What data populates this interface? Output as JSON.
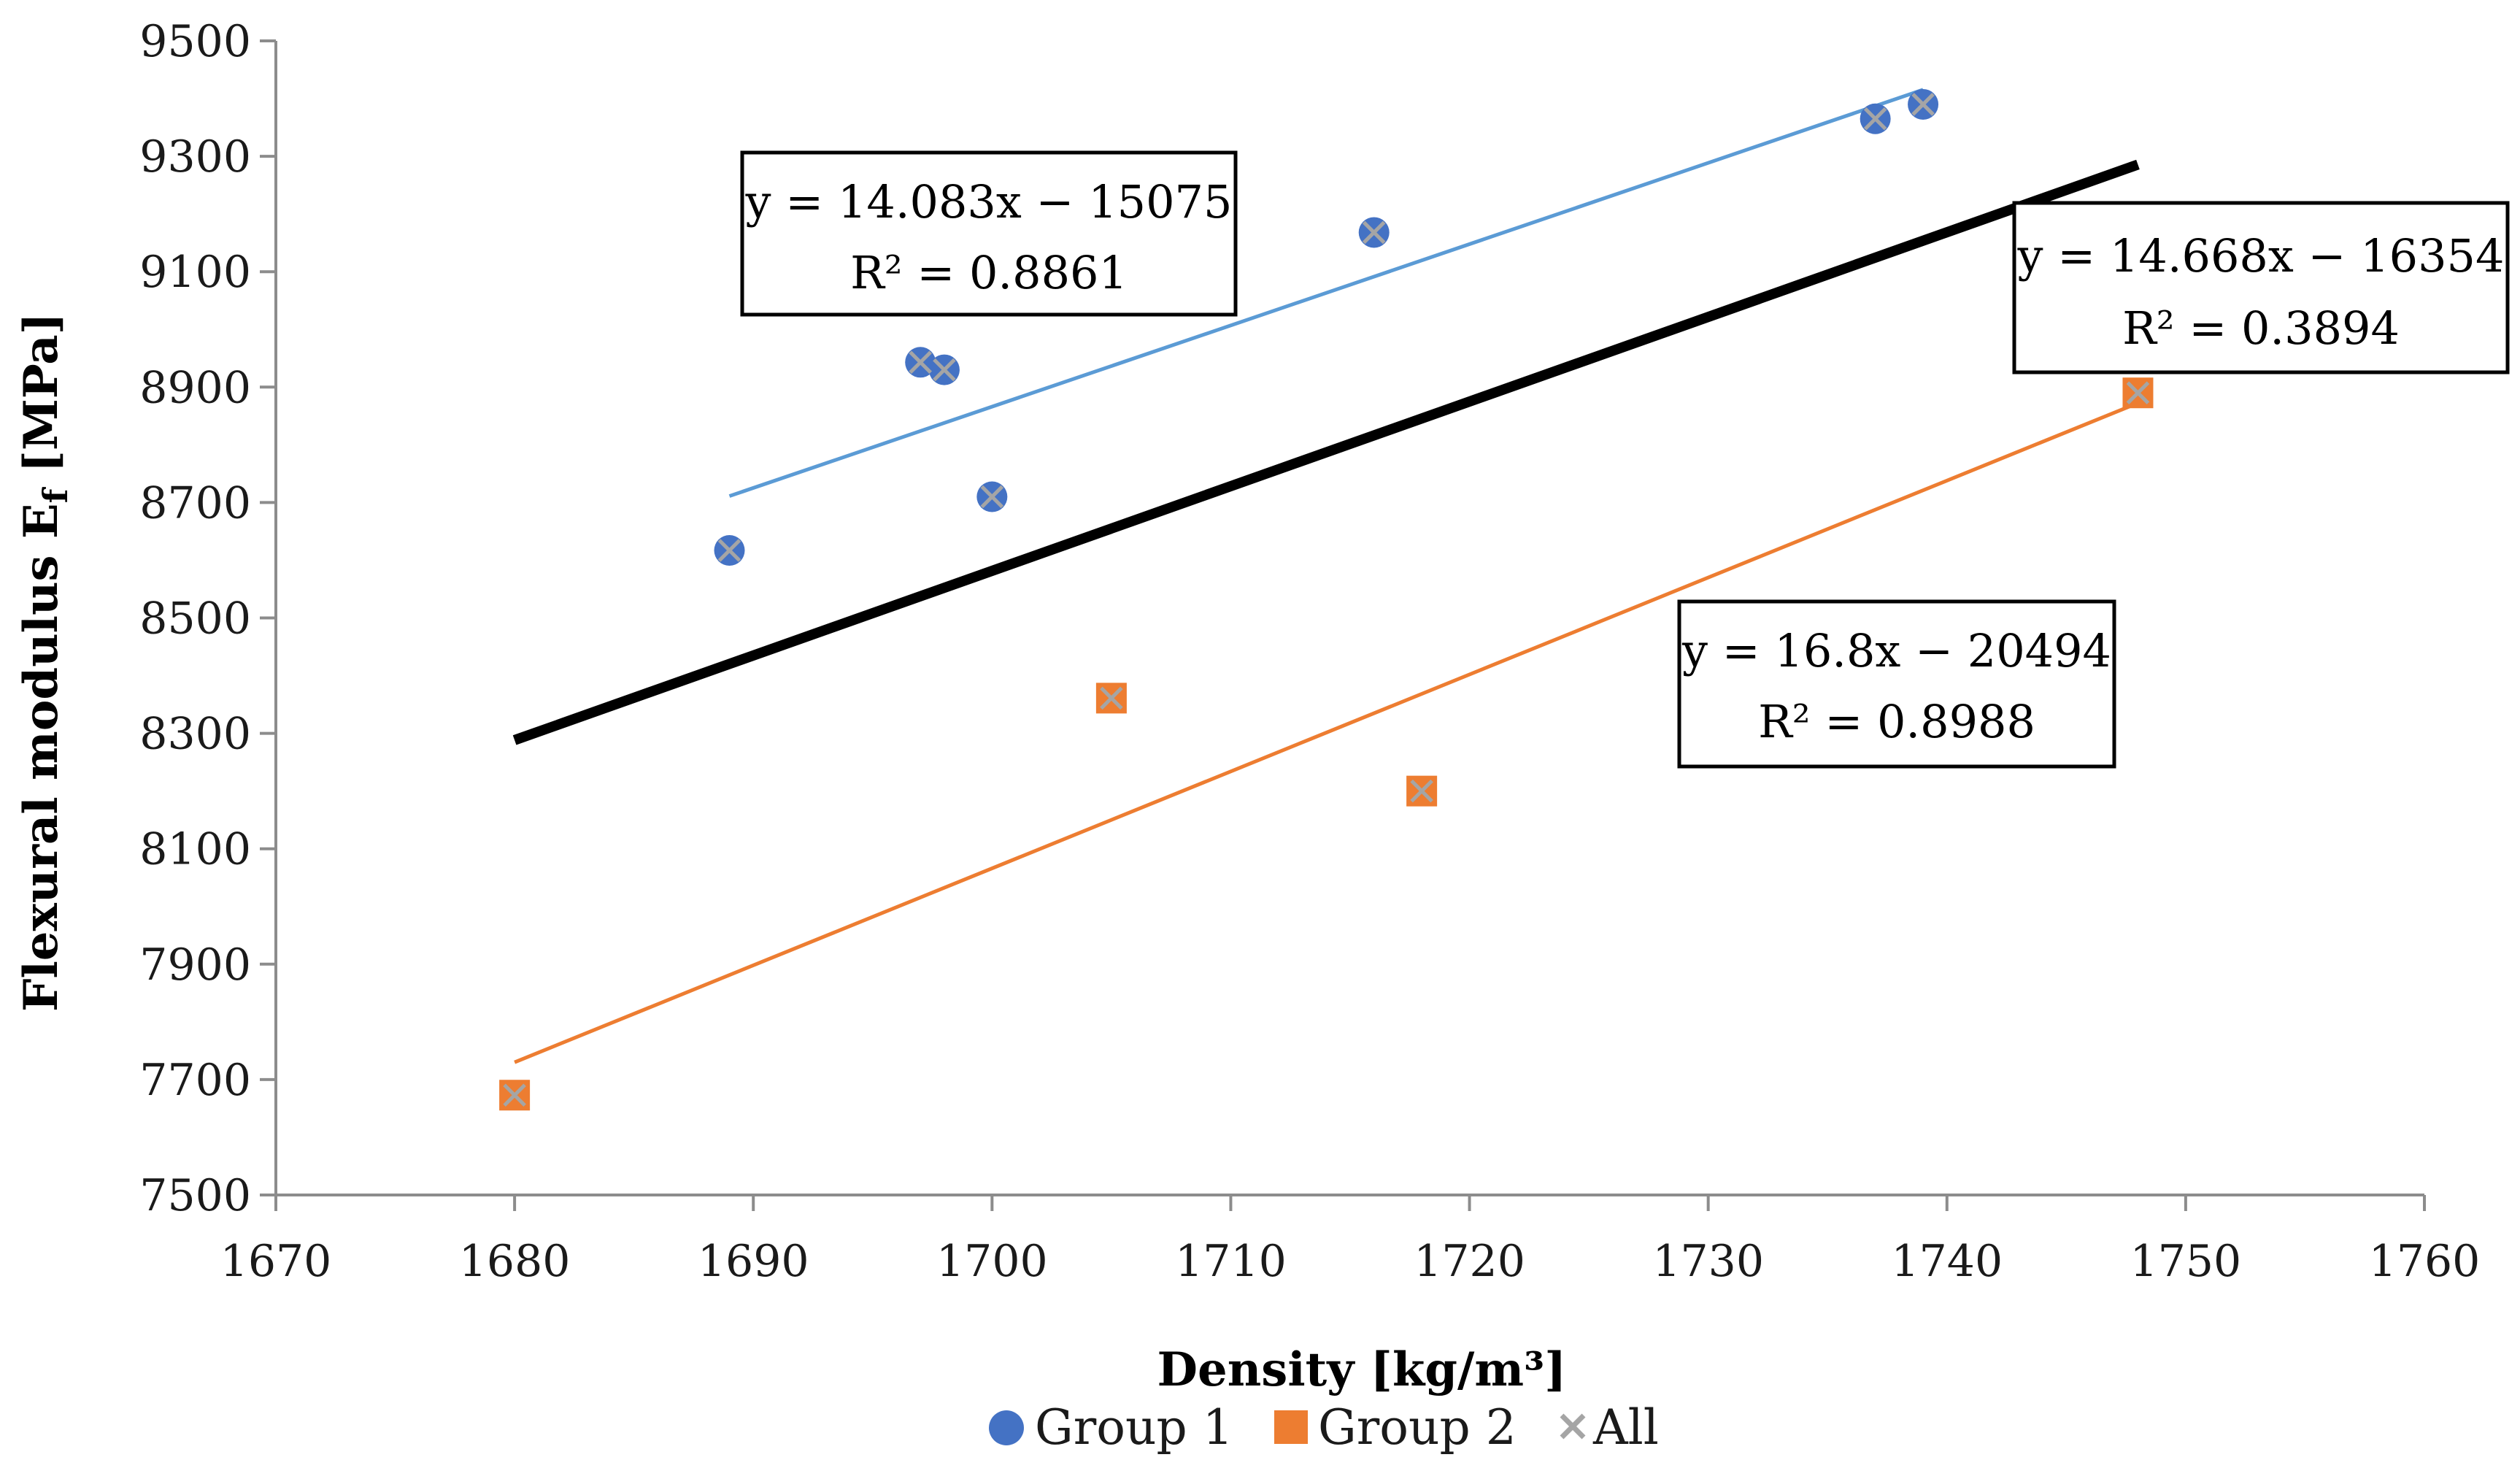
{
  "chart_data": {
    "type": "scatter",
    "title": "",
    "xlabel": "Density [kg/m³]",
    "ylabel": "Flexural modulus E",
    "ylabel_sub": "f",
    "ylabel_suffix": " [MPa]",
    "xlim": [
      1670,
      1760
    ],
    "ylim": [
      7500,
      9500
    ],
    "x_ticks": [
      1670,
      1680,
      1690,
      1700,
      1710,
      1720,
      1730,
      1740,
      1750,
      1760
    ],
    "y_ticks": [
      7500,
      7700,
      7900,
      8100,
      8300,
      8500,
      8700,
      8900,
      9100,
      9300,
      9500
    ],
    "grid": false,
    "legend_position": "bottom",
    "series": [
      {
        "name": "Group 1",
        "marker": "circle",
        "color": "#4472C4",
        "points": [
          [
            1689,
            8617
          ],
          [
            1697,
            8943
          ],
          [
            1698,
            8930
          ],
          [
            1700,
            8710
          ],
          [
            1716,
            9168
          ],
          [
            1737,
            9365
          ],
          [
            1739,
            9390
          ]
        ]
      },
      {
        "name": "Group 2",
        "marker": "square",
        "color": "#ED7D31",
        "points": [
          [
            1680,
            7673
          ],
          [
            1705,
            8361
          ],
          [
            1718,
            8200
          ],
          [
            1748,
            8890
          ]
        ]
      },
      {
        "name": "All",
        "marker": "x",
        "color": "#A5A5A5",
        "points": [
          [
            1689,
            8617
          ],
          [
            1697,
            8943
          ],
          [
            1698,
            8930
          ],
          [
            1700,
            8710
          ],
          [
            1716,
            9168
          ],
          [
            1737,
            9365
          ],
          [
            1739,
            9390
          ],
          [
            1680,
            7673
          ],
          [
            1705,
            8361
          ],
          [
            1718,
            8200
          ],
          [
            1748,
            8890
          ]
        ]
      }
    ],
    "trendlines": [
      {
        "series": "Group 1",
        "color": "#5B9BD5",
        "slope": 14.083,
        "intercept": -15075,
        "x_range": [
          1689,
          1739
        ],
        "equation": "y = 14.083x − 15075",
        "r2": "R² = 0.8861"
      },
      {
        "series": "Group 2",
        "color": "#ED7D31",
        "slope": 16.8,
        "intercept": -20494,
        "x_range": [
          1680,
          1748
        ],
        "equation": "y = 16.8x − 20494",
        "r2": "R² = 0.8988"
      },
      {
        "series": "All",
        "color": "#000000",
        "slope": 14.668,
        "intercept": -16354,
        "x_range": [
          1680,
          1748
        ],
        "equation": "y = 14.668x − 16354",
        "r2": "R² = 0.3894"
      }
    ]
  }
}
